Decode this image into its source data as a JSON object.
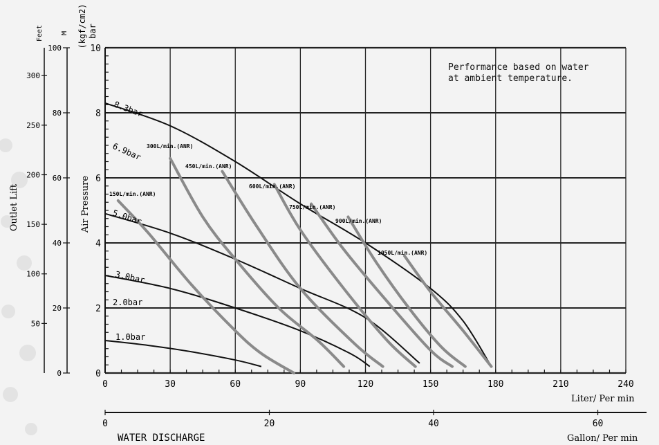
{
  "chart_data": {
    "type": "line",
    "note": [
      "Performance based on water",
      "at ambient temperature."
    ],
    "xlabel_liter": "Liter/ Per min",
    "xlabel_gallon": "Gallon/ Per min",
    "x_caption": "WATER DISCHARGE",
    "ylabel_pressure": "Air Pressure",
    "ylabel_lift": "Outlet Lift",
    "unit_bar": "bar",
    "unit_kgf": "(kgf/cm2)",
    "unit_feet": "Feet",
    "unit_m": "M",
    "xlim": [
      0,
      240
    ],
    "ylim": [
      0,
      10
    ],
    "x_ticks": [
      "0",
      "30",
      "60",
      "90",
      "120",
      "150",
      "180",
      "210",
      "240"
    ],
    "y_ticks": [
      "0",
      "2",
      "4",
      "6",
      "8",
      "10"
    ],
    "gallon_ticks": [
      "0",
      "20",
      "40",
      "60"
    ],
    "gallon_values": [
      0,
      20,
      40,
      60
    ],
    "m_ticks": [
      "0",
      "20",
      "40",
      "60",
      "80",
      "100"
    ],
    "m_values": [
      0,
      20,
      40,
      60,
      80,
      100
    ],
    "feet_ticks": [
      "50",
      "100",
      "150",
      "200",
      "250",
      "300"
    ],
    "feet_values": [
      50,
      100,
      150,
      200,
      250,
      300
    ],
    "pressure_series": [
      {
        "name": "8.3bar",
        "points": [
          [
            0,
            8.3
          ],
          [
            30,
            7.6
          ],
          [
            60,
            6.5
          ],
          [
            90,
            5.2
          ],
          [
            120,
            4.0
          ],
          [
            150,
            2.6
          ],
          [
            165,
            1.6
          ],
          [
            178,
            0.2
          ]
        ]
      },
      {
        "name": "6.9bar",
        "points": null
      },
      {
        "name": "5.0bar",
        "points": [
          [
            0,
            4.9
          ],
          [
            30,
            4.3
          ],
          [
            60,
            3.5
          ],
          [
            90,
            2.6
          ],
          [
            120,
            1.7
          ],
          [
            145,
            0.3
          ]
        ]
      },
      {
        "name": "3.0bar",
        "points": [
          [
            0,
            3.0
          ],
          [
            30,
            2.6
          ],
          [
            60,
            2.0
          ],
          [
            90,
            1.3
          ],
          [
            113,
            0.6
          ],
          [
            122,
            0.2
          ]
        ]
      },
      {
        "name": "2.0bar",
        "points": null
      },
      {
        "name": "1.0bar",
        "points": [
          [
            0,
            1.0
          ],
          [
            20,
            0.85
          ],
          [
            40,
            0.65
          ],
          [
            60,
            0.4
          ],
          [
            72,
            0.2
          ]
        ]
      }
    ],
    "flow_series": [
      {
        "name": "150L/min.(ANR)",
        "points": [
          [
            6,
            5.3
          ],
          [
            20,
            4.3
          ],
          [
            40,
            2.7
          ],
          [
            60,
            1.3
          ],
          [
            72,
            0.6
          ],
          [
            87,
            0.0
          ]
        ]
      },
      {
        "name": "300L/min.(ANR)",
        "points": [
          [
            30,
            6.6
          ],
          [
            45,
            4.8
          ],
          [
            60,
            3.5
          ],
          [
            80,
            2.0
          ],
          [
            98,
            1.0
          ],
          [
            110,
            0.2
          ]
        ]
      },
      {
        "name": "450L/min.(ANR)",
        "points": [
          [
            54,
            6.2
          ],
          [
            70,
            4.5
          ],
          [
            90,
            2.6
          ],
          [
            115,
            0.9
          ],
          [
            128,
            0.2
          ]
        ]
      },
      {
        "name": "600L/min.(ANR)",
        "points": [
          [
            78,
            5.8
          ],
          [
            90,
            4.4
          ],
          [
            110,
            2.6
          ],
          [
            130,
            1.0
          ],
          [
            143,
            0.2
          ]
        ]
      },
      {
        "name": "750L/min.(ANR)",
        "points": [
          [
            95,
            5.2
          ],
          [
            110,
            3.8
          ],
          [
            130,
            2.2
          ],
          [
            150,
            0.7
          ],
          [
            160,
            0.2
          ]
        ]
      },
      {
        "name": "900L/min.(ANR)",
        "points": [
          [
            112,
            4.8
          ],
          [
            125,
            3.4
          ],
          [
            140,
            2.0
          ],
          [
            155,
            0.8
          ],
          [
            166,
            0.2
          ]
        ]
      },
      {
        "name": "1050L/min.(ANR)",
        "points": [
          [
            138,
            3.6
          ],
          [
            150,
            2.5
          ],
          [
            165,
            1.3
          ],
          [
            178,
            0.2
          ]
        ]
      }
    ],
    "pressure_labels": [
      "8.3bar",
      "6.9bar",
      "5.0bar",
      "3.0bar",
      "2.0bar",
      "1.0bar"
    ],
    "grid": true
  }
}
